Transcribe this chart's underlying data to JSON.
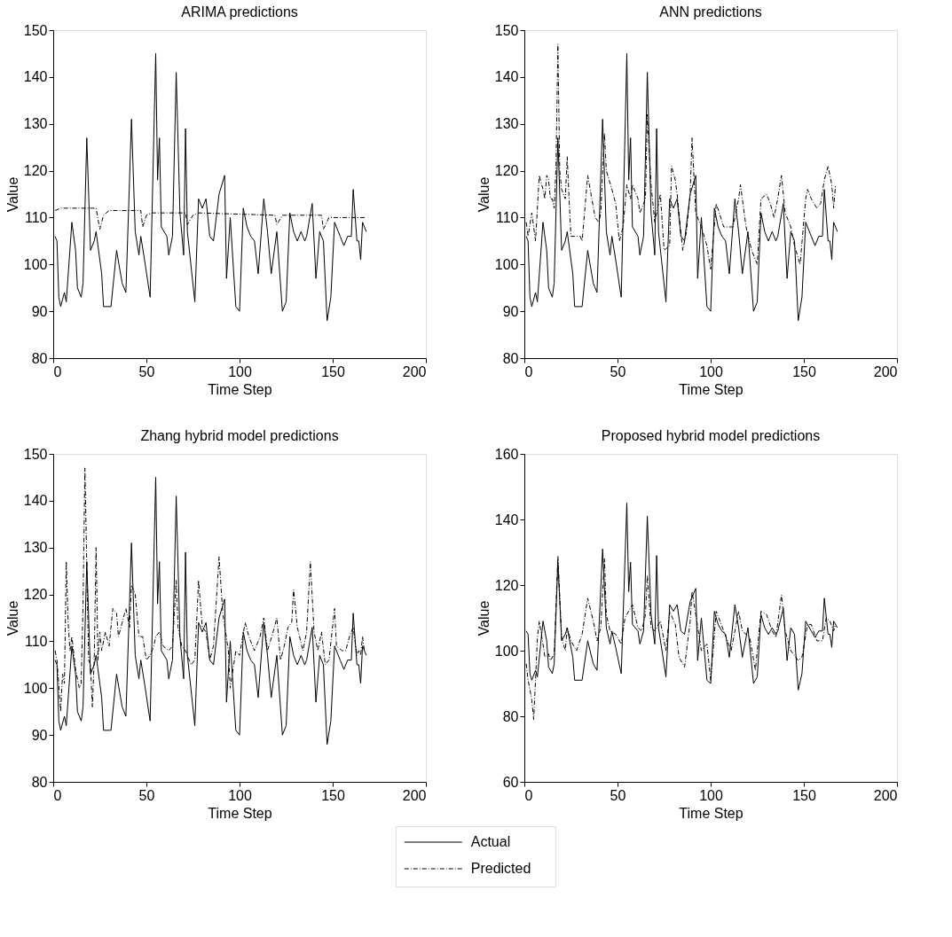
{
  "chart_data": [
    {
      "type": "line",
      "title": "ARIMA predictions",
      "xlabel": "Time Step",
      "ylabel": "Value",
      "xlim": [
        0,
        200
      ],
      "xticks": [
        0,
        50,
        100,
        150,
        200
      ],
      "ylim": [
        80,
        150
      ],
      "yticks": [
        80,
        90,
        100,
        110,
        120,
        130,
        140,
        150
      ],
      "grid": false,
      "legend": "bottom",
      "series": [
        {
          "name": "Actual",
          "color": "#000000",
          "line_style": "solid",
          "x": [
            1,
            2,
            3,
            4,
            6,
            7,
            10,
            12,
            13,
            15,
            16,
            18,
            20,
            22,
            23,
            26,
            27,
            30,
            31,
            34,
            37,
            39,
            42,
            44,
            46,
            47,
            49,
            52,
            55,
            56,
            57,
            58,
            61,
            62,
            64,
            66,
            68,
            70,
            71,
            72,
            76,
            78,
            80,
            82,
            84,
            86,
            89,
            92,
            93,
            95,
            98,
            100,
            102,
            104,
            106,
            108,
            110,
            113,
            115,
            117,
            120,
            123,
            125,
            127,
            129,
            131,
            133,
            135,
            136,
            139,
            140,
            141,
            143,
            145,
            147,
            149,
            151,
            154,
            156,
            158,
            160,
            161,
            163,
            164,
            165,
            166,
            168
          ],
          "values": [
            106,
            105,
            93,
            91,
            94,
            92,
            109,
            103,
            95,
            93,
            96,
            127,
            103,
            105,
            107,
            98,
            91,
            91,
            91,
            103,
            96,
            94,
            131,
            107,
            102,
            106,
            101,
            93,
            145,
            118,
            127,
            108,
            106,
            102,
            106,
            141,
            111,
            102,
            129,
            107,
            92,
            114,
            112,
            114,
            106,
            105,
            115,
            119,
            97,
            110,
            91,
            90,
            112,
            108,
            106,
            105,
            98,
            114,
            107,
            98,
            107,
            90,
            92,
            111,
            107,
            105,
            107,
            105,
            106,
            113,
            105,
            97,
            107,
            105,
            88,
            93,
            109,
            106,
            104,
            106,
            106,
            116,
            105,
            105,
            101,
            109,
            107
          ]
        },
        {
          "name": "Predicted",
          "color": "#000000",
          "line_style": "dashed",
          "x": [
            1,
            4,
            23,
            25,
            27,
            30,
            47,
            48,
            50,
            53,
            71,
            72,
            75,
            78,
            119,
            120,
            123,
            144,
            145,
            148,
            168
          ],
          "values": [
            111.5,
            112,
            112,
            107.5,
            110.5,
            111.5,
            111.5,
            108,
            110.5,
            111,
            111,
            108.5,
            110.5,
            111,
            110.5,
            108.5,
            110.5,
            110.5,
            107.5,
            110,
            110
          ]
        }
      ]
    },
    {
      "type": "line",
      "title": "ANN predictions",
      "xlabel": "Time Step",
      "ylabel": "Value",
      "xlim": [
        0,
        200
      ],
      "xticks": [
        0,
        50,
        100,
        150,
        200
      ],
      "ylim": [
        80,
        150
      ],
      "yticks": [
        80,
        90,
        100,
        110,
        120,
        130,
        140,
        150
      ],
      "grid": false,
      "series": [
        {
          "color": "#000000",
          "line_style": "solid",
          "x": [
            1,
            2,
            3,
            4,
            6,
            7,
            10,
            12,
            13,
            15,
            16,
            18,
            20,
            22,
            23,
            26,
            27,
            30,
            31,
            34,
            37,
            39,
            42,
            44,
            46,
            47,
            49,
            52,
            55,
            56,
            57,
            58,
            61,
            62,
            64,
            66,
            68,
            70,
            71,
            72,
            76,
            78,
            80,
            82,
            84,
            86,
            89,
            92,
            93,
            95,
            98,
            100,
            102,
            104,
            106,
            108,
            110,
            113,
            115,
            117,
            120,
            123,
            125,
            127,
            129,
            131,
            133,
            135,
            136,
            139,
            140,
            141,
            143,
            145,
            147,
            149,
            151,
            154,
            156,
            158,
            160,
            161,
            163,
            164,
            165,
            166,
            168
          ],
          "values": [
            106,
            105,
            93,
            91,
            94,
            92,
            109,
            103,
            95,
            93,
            96,
            127,
            103,
            105,
            107,
            98,
            91,
            91,
            91,
            103,
            96,
            94,
            131,
            107,
            102,
            106,
            101,
            93,
            145,
            118,
            127,
            108,
            106,
            102,
            106,
            141,
            111,
            102,
            129,
            107,
            92,
            114,
            112,
            114,
            106,
            105,
            115,
            119,
            97,
            110,
            91,
            90,
            112,
            108,
            106,
            105,
            98,
            114,
            107,
            98,
            107,
            90,
            92,
            111,
            107,
            105,
            107,
            105,
            106,
            113,
            105,
            97,
            107,
            105,
            88,
            93,
            109,
            106,
            104,
            106,
            106,
            116,
            105,
            105,
            101,
            109,
            107
          ]
        },
        {
          "color": "#000000",
          "line_style": "dashed",
          "x": [
            1,
            2,
            4,
            6,
            8,
            10,
            11,
            12,
            13,
            14,
            15,
            16,
            17,
            18,
            19,
            20,
            21,
            22,
            23,
            24,
            25,
            27,
            30,
            31,
            34,
            38,
            40,
            41,
            43,
            44,
            47,
            49,
            51,
            53,
            55,
            57,
            58,
            61,
            62,
            65,
            66,
            68,
            70,
            73,
            75,
            78,
            79,
            81,
            82,
            85,
            87,
            89,
            90,
            92,
            95,
            98,
            100,
            103,
            107,
            110,
            112,
            115,
            116,
            119,
            122,
            125,
            127,
            130,
            132,
            134,
            136,
            138,
            140,
            143,
            145,
            148,
            151,
            152,
            154,
            157,
            159,
            161,
            163,
            165,
            166,
            167
          ],
          "values": [
            109,
            106,
            111,
            105,
            119,
            116,
            114,
            119,
            118,
            114,
            114,
            112,
            121,
            147,
            120,
            116,
            115,
            114,
            123,
            114,
            106,
            106,
            106,
            105,
            119,
            110,
            109,
            111,
            128,
            120,
            116,
            113,
            105,
            108,
            117,
            114,
            117,
            114,
            111,
            114,
            132,
            117,
            109,
            115,
            103,
            104,
            121,
            118,
            115,
            103,
            107,
            115,
            127,
            111,
            108,
            104,
            99,
            113,
            108,
            108,
            108,
            114,
            117,
            108,
            103,
            100,
            114,
            115,
            113,
            110,
            114,
            119,
            111,
            108,
            104,
            100,
            114,
            116,
            114,
            112,
            113,
            118,
            121,
            117,
            112,
            117
          ]
        }
      ]
    },
    {
      "type": "line",
      "title": "Zhang hybrid model predictions",
      "xlabel": "Time Step",
      "ylabel": "Value",
      "xlim": [
        0,
        200
      ],
      "xticks": [
        0,
        50,
        100,
        150,
        200
      ],
      "ylim": [
        80,
        150
      ],
      "yticks": [
        80,
        90,
        100,
        110,
        120,
        130,
        140,
        150
      ],
      "grid": false,
      "series": [
        {
          "color": "#000000",
          "line_style": "solid",
          "x": [
            1,
            2,
            3,
            4,
            6,
            7,
            10,
            12,
            13,
            15,
            16,
            18,
            20,
            22,
            23,
            26,
            27,
            30,
            31,
            34,
            37,
            39,
            42,
            44,
            46,
            47,
            49,
            52,
            55,
            56,
            57,
            58,
            61,
            62,
            64,
            66,
            68,
            70,
            71,
            72,
            76,
            78,
            80,
            82,
            84,
            86,
            89,
            92,
            93,
            95,
            98,
            100,
            102,
            104,
            106,
            108,
            110,
            113,
            115,
            117,
            120,
            123,
            125,
            127,
            129,
            131,
            133,
            135,
            136,
            139,
            140,
            141,
            143,
            145,
            147,
            149,
            151,
            154,
            156,
            158,
            160,
            161,
            163,
            164,
            165,
            166,
            168
          ],
          "values": [
            106,
            105,
            93,
            91,
            94,
            92,
            109,
            103,
            95,
            93,
            96,
            127,
            103,
            105,
            107,
            98,
            91,
            91,
            91,
            103,
            96,
            94,
            131,
            107,
            102,
            106,
            101,
            93,
            145,
            118,
            127,
            108,
            106,
            102,
            106,
            141,
            111,
            102,
            129,
            107,
            92,
            114,
            112,
            114,
            106,
            105,
            115,
            119,
            97,
            110,
            91,
            90,
            112,
            108,
            106,
            105,
            98,
            114,
            107,
            98,
            107,
            90,
            92,
            111,
            107,
            105,
            107,
            105,
            106,
            113,
            105,
            97,
            107,
            105,
            88,
            93,
            109,
            106,
            104,
            106,
            106,
            116,
            105,
            105,
            101,
            109,
            107
          ]
        },
        {
          "color": "#000000",
          "line_style": "dashed",
          "x": [
            1,
            2,
            4,
            5,
            6,
            7,
            8,
            9,
            10,
            12,
            14,
            15,
            16,
            17,
            19,
            20,
            21,
            22,
            23,
            24,
            25,
            26,
            28,
            30,
            32,
            34,
            35,
            37,
            39,
            41,
            42,
            44,
            46,
            48,
            50,
            52,
            54,
            55,
            57,
            59,
            62,
            64,
            66,
            67,
            69,
            71,
            74,
            76,
            78,
            80,
            82,
            84,
            86,
            89,
            91,
            94,
            95,
            98,
            100,
            103,
            105,
            108,
            111,
            113,
            115,
            118,
            120,
            122,
            124,
            126,
            128,
            129,
            131,
            134,
            136,
            138,
            140,
            142,
            144,
            146,
            148,
            151,
            152,
            155,
            157,
            159,
            161,
            163,
            164,
            165,
            166,
            167
          ],
          "values": [
            108,
            106,
            95,
            103,
            101,
            127,
            114,
            108,
            111,
            104,
            100,
            101,
            118,
            147,
            106,
            105,
            96,
            106,
            130,
            106,
            112,
            108,
            112,
            109,
            117,
            116,
            111,
            114,
            117,
            113,
            122,
            120,
            111,
            111,
            106,
            107,
            109,
            111,
            112,
            109,
            108,
            109,
            123,
            113,
            109,
            108,
            105,
            106,
            123,
            113,
            112,
            106,
            109,
            128,
            116,
            108,
            100,
            108,
            107,
            114,
            111,
            108,
            111,
            115,
            108,
            112,
            115,
            106,
            109,
            113,
            114,
            121,
            113,
            108,
            112,
            127,
            112,
            108,
            112,
            105,
            106,
            117,
            109,
            108,
            108,
            111,
            113,
            107,
            108,
            107,
            111,
            108
          ]
        }
      ]
    },
    {
      "type": "line",
      "title": "Proposed hybrid model predictions",
      "xlabel": "Time Step",
      "ylabel": "Value",
      "xlim": [
        0,
        200
      ],
      "xticks": [
        0,
        50,
        100,
        150,
        200
      ],
      "ylim": [
        60,
        160
      ],
      "yticks": [
        60,
        80,
        100,
        120,
        140,
        160
      ],
      "grid": false,
      "series": [
        {
          "color": "#000000",
          "line_style": "solid",
          "x": [
            1,
            2,
            3,
            4,
            6,
            7,
            10,
            12,
            13,
            15,
            16,
            18,
            20,
            22,
            23,
            26,
            27,
            30,
            31,
            34,
            37,
            39,
            42,
            44,
            46,
            47,
            49,
            52,
            55,
            56,
            57,
            58,
            61,
            62,
            64,
            66,
            68,
            70,
            71,
            72,
            76,
            78,
            80,
            82,
            84,
            86,
            89,
            92,
            93,
            95,
            98,
            100,
            102,
            104,
            106,
            108,
            110,
            113,
            115,
            117,
            120,
            123,
            125,
            127,
            129,
            131,
            133,
            135,
            136,
            139,
            140,
            141,
            143,
            145,
            147,
            149,
            151,
            154,
            156,
            158,
            160,
            161,
            163,
            164,
            165,
            166,
            168
          ],
          "values": [
            106,
            105,
            93,
            91,
            94,
            92,
            109,
            103,
            95,
            93,
            96,
            127,
            103,
            105,
            107,
            98,
            91,
            91,
            91,
            103,
            96,
            94,
            131,
            107,
            102,
            106,
            101,
            93,
            145,
            118,
            127,
            108,
            106,
            102,
            106,
            141,
            111,
            102,
            129,
            107,
            92,
            114,
            112,
            114,
            106,
            105,
            115,
            119,
            97,
            110,
            91,
            90,
            112,
            108,
            106,
            105,
            98,
            114,
            107,
            98,
            107,
            90,
            92,
            111,
            107,
            105,
            107,
            105,
            106,
            113,
            105,
            97,
            107,
            105,
            88,
            93,
            109,
            106,
            104,
            106,
            106,
            116,
            105,
            105,
            101,
            109,
            107
          ]
        },
        {
          "color": "#000000",
          "line_style": "dashed",
          "x": [
            1,
            2,
            4,
            5,
            6,
            7,
            8,
            10,
            11,
            13,
            14,
            16,
            18,
            20,
            22,
            23,
            25,
            28,
            31,
            34,
            37,
            39,
            41,
            43,
            44,
            46,
            49,
            52,
            54,
            58,
            61,
            63,
            65,
            66,
            68,
            70,
            73,
            74,
            76,
            78,
            81,
            83,
            86,
            89,
            90,
            92,
            95,
            98,
            100,
            103,
            107,
            111,
            115,
            117,
            121,
            124,
            127,
            130,
            133,
            135,
            138,
            140,
            143,
            147,
            149,
            152,
            154,
            157,
            160,
            162,
            164,
            166,
            167
          ],
          "values": [
            96,
            91,
            85,
            79,
            91,
            104,
            109,
            102,
            98,
            99,
            97,
            99,
            129,
            104,
            100,
            107,
            103,
            100,
            105,
            116,
            109,
            103,
            107,
            128,
            111,
            106,
            105,
            102,
            110,
            114,
            107,
            106,
            111,
            123,
            107,
            106,
            109,
            106,
            100,
            112,
            108,
            98,
            95,
            109,
            118,
            111,
            100,
            102,
            91,
            112,
            106,
            100,
            112,
            106,
            104,
            94,
            112,
            111,
            106,
            104,
            117,
            106,
            100,
            97,
            98,
            108,
            108,
            103,
            103,
            110,
            109,
            106,
            108
          ]
        }
      ]
    }
  ]
}
